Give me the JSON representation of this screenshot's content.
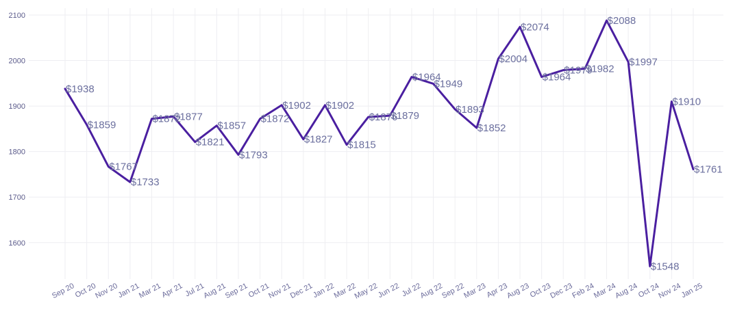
{
  "chart_data": {
    "type": "line",
    "title": "",
    "xlabel": "",
    "ylabel": "",
    "ylim": [
      1520,
      2115
    ],
    "y_ticks": [
      1600,
      1700,
      1800,
      1900,
      2000,
      2100
    ],
    "grid": true,
    "legend": "none",
    "line_color": "#4a1fa0",
    "categories": [
      "Sep 20",
      "Oct 20",
      "Nov 20",
      "Jan 21",
      "Mar 21",
      "Apr 21",
      "Jul 21",
      "Aug 21",
      "Sep 21",
      "Oct 21",
      "Nov 21",
      "Dec 21",
      "Jan 22",
      "Mar 22",
      "May 22",
      "Jun 22",
      "Jul 22",
      "Aug 22",
      "Sep 22",
      "Mar 23",
      "Apr 23",
      "Aug 23",
      "Oct 23",
      "Dec 23",
      "Feb 24",
      "Mar 24",
      "Aug 24",
      "Oct 24",
      "Nov 24",
      "Jan 25"
    ],
    "series": [
      {
        "values": [
          1938,
          1859,
          1767,
          1733,
          1872,
          1877,
          1821,
          1857,
          1793,
          1872,
          1902,
          1827,
          1902,
          1815,
          1876,
          1879,
          1964,
          1949,
          1893,
          1852,
          2004,
          2074,
          1964,
          1979,
          1982,
          2088,
          1997,
          1548,
          1910,
          1761
        ],
        "data_labels": [
          "$1938",
          "$1859",
          "$1767",
          "$1733",
          "$1872",
          "$1877",
          "$1821",
          "$1857",
          "$1793",
          "$1872",
          "$1902",
          "$1827",
          "$1902",
          "$1815",
          "$1876",
          "$1879",
          "$1964",
          "$1949",
          "$1893",
          "$1852",
          "$2004",
          "$2074",
          "$1964",
          "$1979",
          "$1982",
          "$2088",
          "$1997",
          "$1548",
          "$1910",
          "$1761"
        ]
      }
    ]
  }
}
